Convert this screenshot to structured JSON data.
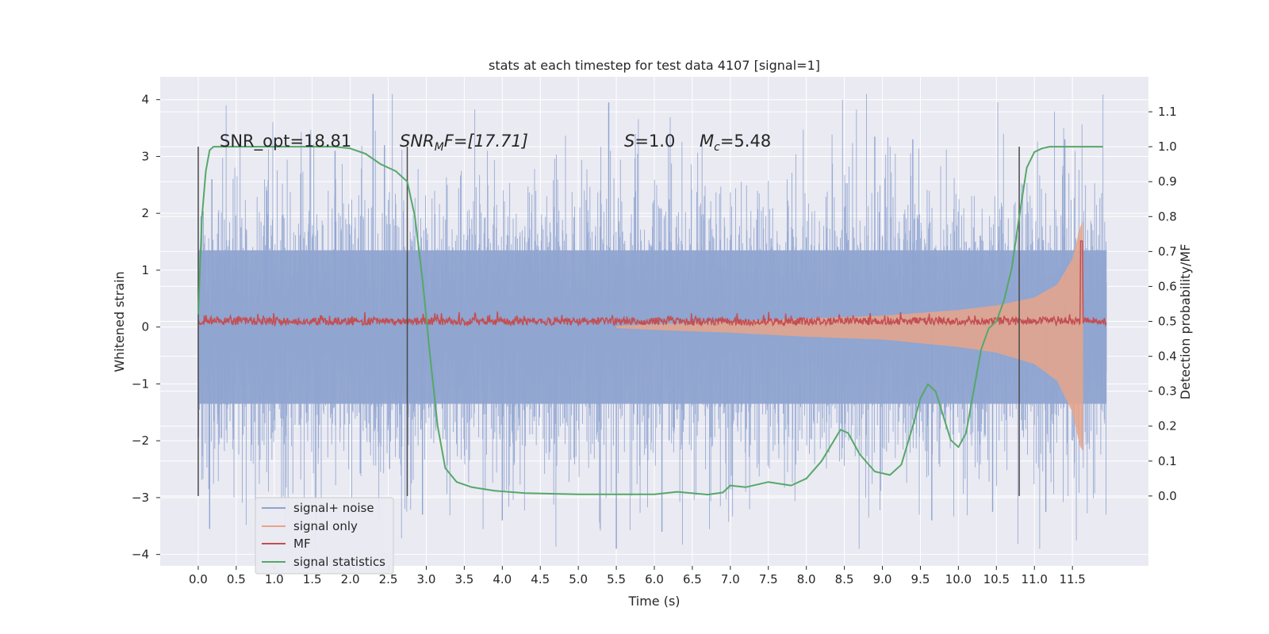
{
  "chart_data": {
    "type": "line",
    "title": "stats at each timestep for test data 4107 [signal=1]",
    "xlabel": "Time (s)",
    "ylabel": "Whitened strain",
    "y2label": "Detection probability/MF",
    "xlim": [
      -0.5,
      12.5
    ],
    "ylim": [
      -4.2,
      4.4
    ],
    "y2lim": [
      -0.2,
      1.2
    ],
    "x_ticks": [
      0.0,
      0.5,
      1.0,
      1.5,
      2.0,
      2.5,
      3.0,
      3.5,
      4.0,
      4.5,
      5.0,
      5.5,
      6.0,
      6.5,
      7.0,
      7.5,
      8.0,
      8.5,
      9.0,
      9.5,
      10.0,
      10.5,
      11.0,
      11.5
    ],
    "x_tick_labels": [
      "0.0",
      "0.5",
      "1.0",
      "1.5",
      "2.0",
      "2.5",
      "3.0",
      "3.5",
      "4.0",
      "4.5",
      "5.0",
      "5.5",
      "6.0",
      "6.5",
      "7.0",
      "7.5",
      "8.0",
      "8.5",
      "9.0",
      "9.5",
      "10.0",
      "10.5",
      "11.0",
      "11.5"
    ],
    "y_ticks": [
      -4,
      -3,
      -2,
      -1,
      0,
      1,
      2,
      3,
      4
    ],
    "y_tick_labels": [
      "−4",
      "−3",
      "−2",
      "−1",
      "0",
      "1",
      "2",
      "3",
      "4"
    ],
    "y2_ticks": [
      0.0,
      0.1,
      0.2,
      0.3,
      0.4,
      0.5,
      0.6,
      0.7,
      0.8,
      0.9,
      1.0,
      1.1
    ],
    "y2_tick_labels": [
      "0.0",
      "0.1",
      "0.2",
      "0.3",
      "0.4",
      "0.5",
      "0.6",
      "0.7",
      "0.8",
      "0.9",
      "1.0",
      "1.1"
    ],
    "grid": true,
    "legend_position": "lower-left",
    "annotations": {
      "snr_opt": "SNR_opt=18.81",
      "snr_mf_sym": "SNR",
      "snr_mf_sub": "M",
      "snr_mf_rest": "F=[17.71]",
      "s_sym": "S",
      "s_val": "=1.0",
      "mc_sym": "M",
      "mc_sub": "c",
      "mc_val": "=5.48"
    },
    "vertical_markers": [
      0.0,
      2.75,
      10.8
    ],
    "series": [
      {
        "name": "signal+ noise",
        "color": "#8fa4d0",
        "kind": "noise-band",
        "x_range": [
          0.0,
          11.95
        ],
        "typical_amplitude": 1.3,
        "peak_range": [
          -3.9,
          4.1
        ]
      },
      {
        "name": "signal only",
        "color": "#e8a58a",
        "kind": "chirp-envelope",
        "x_range": [
          5.5,
          11.65
        ],
        "envelope_x": [
          5.5,
          6.0,
          7.0,
          8.0,
          9.0,
          10.0,
          10.5,
          11.0,
          11.3,
          11.5,
          11.6,
          11.65
        ],
        "envelope_y": [
          0.02,
          0.05,
          0.1,
          0.15,
          0.2,
          0.3,
          0.38,
          0.52,
          0.75,
          1.2,
          1.75,
          1.9
        ],
        "envelope_lower_y": [
          -0.02,
          -0.05,
          -0.1,
          -0.17,
          -0.22,
          -0.35,
          -0.45,
          -0.65,
          -0.95,
          -1.5,
          -2.1,
          -2.2
        ]
      },
      {
        "name": "MF",
        "color": "#c44e52",
        "kind": "mf-trace",
        "x_range": [
          0.0,
          11.95
        ],
        "baseline": 0.5,
        "peak_x": 11.62,
        "peak_y": 0.73
      },
      {
        "name": "signal statistics",
        "color": "#55a868",
        "x": [
          0.0,
          0.05,
          0.1,
          0.15,
          0.2,
          0.3,
          0.5,
          1.0,
          1.5,
          1.8,
          2.0,
          2.2,
          2.4,
          2.6,
          2.75,
          2.85,
          2.95,
          3.05,
          3.15,
          3.25,
          3.4,
          3.6,
          3.9,
          4.3,
          5.0,
          6.0,
          6.3,
          6.7,
          6.9,
          7.0,
          7.2,
          7.5,
          7.8,
          8.0,
          8.2,
          8.45,
          8.55,
          8.7,
          8.9,
          9.1,
          9.25,
          9.4,
          9.5,
          9.6,
          9.7,
          9.8,
          9.9,
          10.0,
          10.1,
          10.2,
          10.3,
          10.4,
          10.5,
          10.6,
          10.7,
          10.8,
          10.9,
          11.0,
          11.1,
          11.2,
          11.4,
          11.7,
          11.9
        ],
        "y": [
          0.52,
          0.8,
          0.93,
          0.99,
          1.0,
          1.0,
          1.0,
          1.0,
          1.0,
          1.0,
          0.995,
          0.98,
          0.95,
          0.93,
          0.9,
          0.8,
          0.62,
          0.4,
          0.2,
          0.08,
          0.04,
          0.025,
          0.015,
          0.008,
          0.005,
          0.005,
          0.012,
          0.004,
          0.01,
          0.03,
          0.025,
          0.04,
          0.03,
          0.05,
          0.1,
          0.19,
          0.18,
          0.12,
          0.07,
          0.06,
          0.09,
          0.2,
          0.28,
          0.32,
          0.3,
          0.23,
          0.16,
          0.14,
          0.18,
          0.3,
          0.42,
          0.48,
          0.5,
          0.56,
          0.65,
          0.8,
          0.94,
          0.985,
          0.995,
          1.0,
          1.0,
          1.0,
          1.0
        ]
      }
    ]
  }
}
